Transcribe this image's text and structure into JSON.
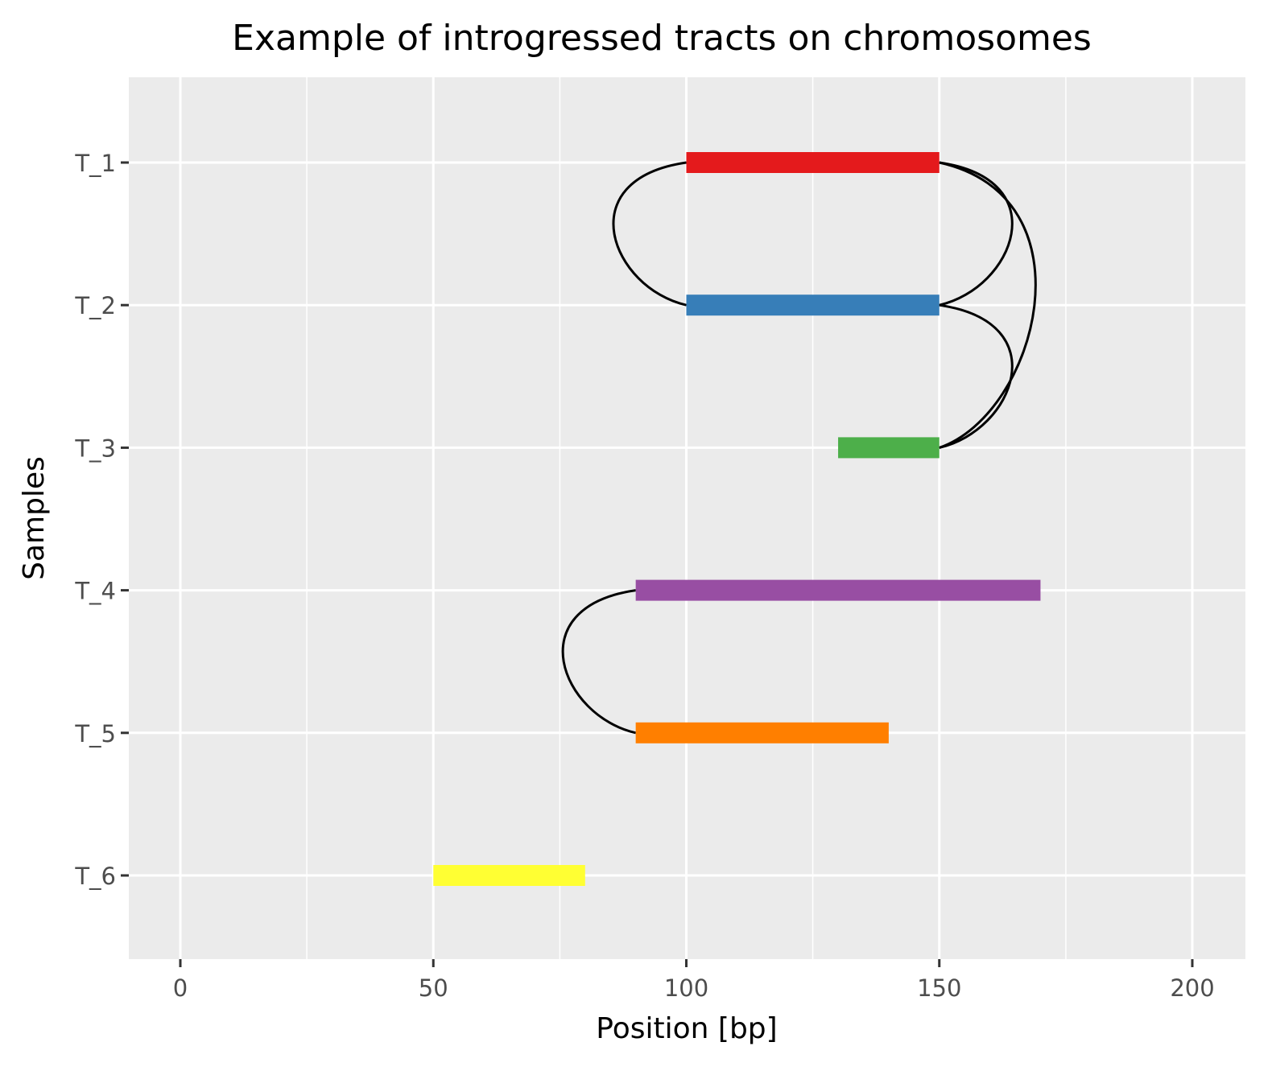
{
  "chart_data": {
    "type": "segment",
    "title": "Example of introgressed tracts on chromosomes",
    "xlabel": "Position [bp]",
    "ylabel": "Samples",
    "xlim": [
      -10,
      210
    ],
    "x_ticks": [
      0,
      50,
      100,
      150,
      200
    ],
    "x_minor_ticks": [
      25,
      75,
      125,
      175
    ],
    "categories": [
      "T_1",
      "T_2",
      "T_3",
      "T_4",
      "T_5",
      "T_6"
    ],
    "grid": true,
    "tracts": [
      {
        "sample": "T_1",
        "start": 100,
        "end": 150,
        "color": "#E41A1C"
      },
      {
        "sample": "T_2",
        "start": 100,
        "end": 150,
        "color": "#377EB8"
      },
      {
        "sample": "T_3",
        "start": 130,
        "end": 150,
        "color": "#4DAF4A"
      },
      {
        "sample": "T_4",
        "start": 90,
        "end": 170,
        "color": "#984EA3"
      },
      {
        "sample": "T_5",
        "start": 90,
        "end": 140,
        "color": "#FF7F00"
      },
      {
        "sample": "T_6",
        "start": 50,
        "end": 80,
        "color": "#FFFF33"
      }
    ],
    "links": [
      {
        "from": "T_1",
        "to": "T_2",
        "x": 100,
        "side": "left"
      },
      {
        "from": "T_1",
        "to": "T_2",
        "x": 150,
        "side": "right"
      },
      {
        "from": "T_1",
        "to": "T_3",
        "x": 150,
        "side": "right"
      },
      {
        "from": "T_2",
        "to": "T_3",
        "x": 150,
        "side": "right"
      },
      {
        "from": "T_4",
        "to": "T_5",
        "x": 90,
        "side": "left"
      }
    ],
    "colors": {
      "panel_background": "#EBEBEB",
      "grid": "#FFFFFF",
      "link": "#000000"
    }
  }
}
